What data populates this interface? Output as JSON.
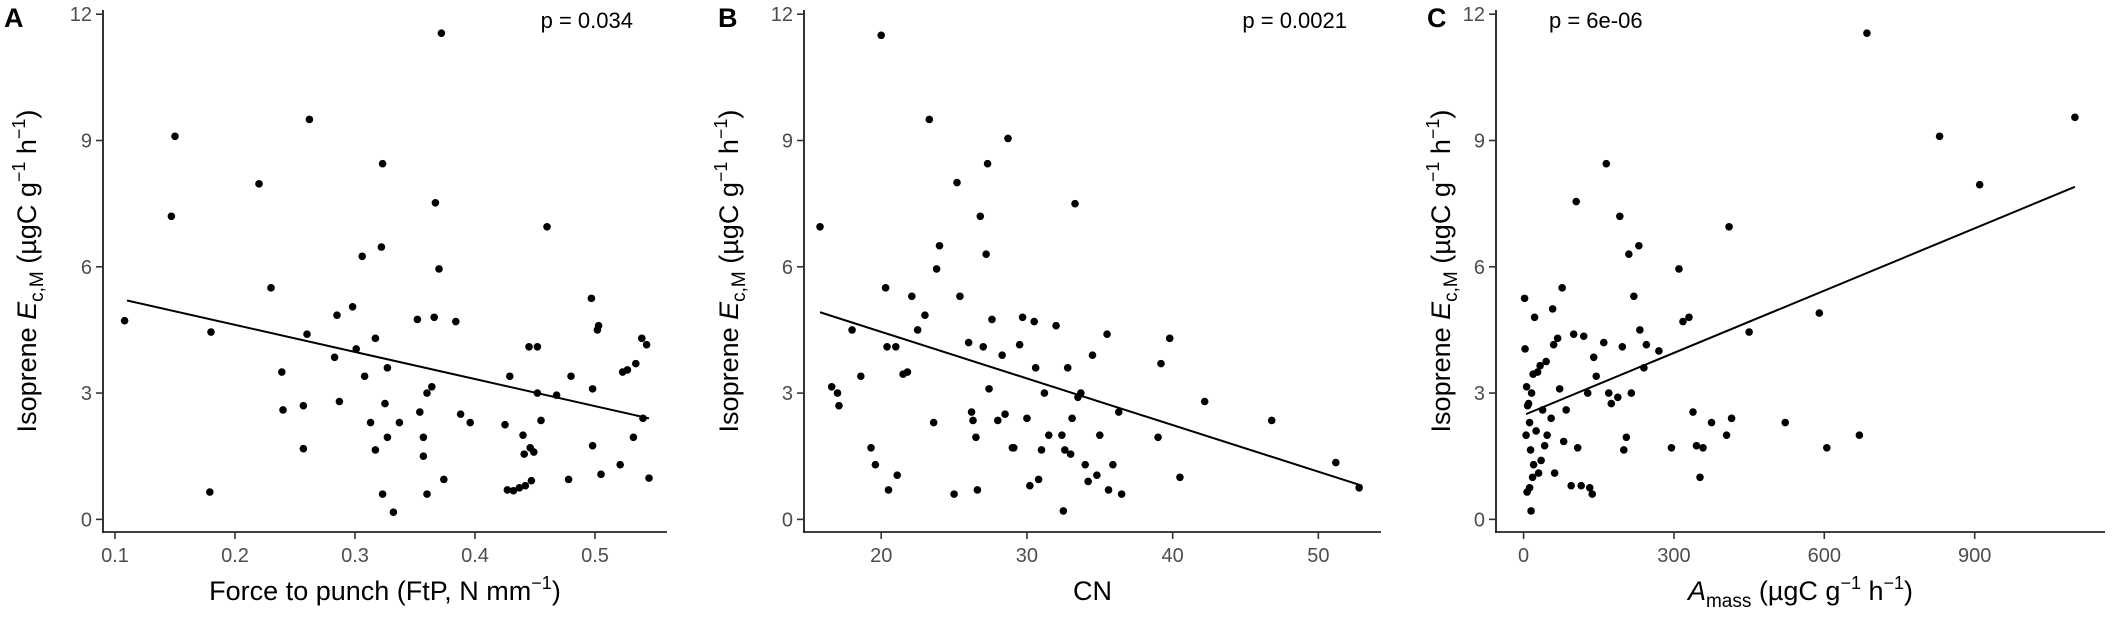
{
  "colors": {
    "points": "#000000",
    "fit_line": "#000000",
    "tick_text": "#4d4d4d"
  },
  "chart_data": [
    {
      "type": "scatter",
      "panel_label": "A",
      "annotation": "p = 0.034",
      "ylabel": "Isoprene E c,M (µgC g⁻¹ h⁻¹)",
      "ylabel_parts": {
        "pre": "Isoprene ",
        "sym": "E",
        "sub": "c,M",
        "post": " (µgC g",
        "exp1": "−1",
        "mid": " h",
        "exp2": "−1",
        "end": ")"
      },
      "xlabel": "Force to punch (FtP, N mm⁻¹)",
      "xlabel_parts": {
        "pre": "Force to punch (FtP, N mm",
        "exp": "−1",
        "end": ")"
      },
      "xlim": [
        0.09,
        0.56
      ],
      "ylim": [
        -0.3,
        12.1
      ],
      "x_ticks": [
        0.1,
        0.2,
        0.3,
        0.4,
        0.5
      ],
      "x_tick_labels": [
        "0.1",
        "0.2",
        "0.3",
        "0.4",
        "0.5"
      ],
      "y_ticks": [
        0,
        3,
        6,
        9,
        12
      ],
      "y_tick_labels": [
        "0",
        "3",
        "6",
        "9",
        "12"
      ],
      "fit_line": {
        "x": [
          0.11,
          0.545
        ],
        "y": [
          5.2,
          2.4
        ]
      },
      "points": [
        [
          0.108,
          4.72
        ],
        [
          0.147,
          7.2
        ],
        [
          0.15,
          9.1
        ],
        [
          0.179,
          0.65
        ],
        [
          0.18,
          4.45
        ],
        [
          0.22,
          7.97
        ],
        [
          0.23,
          5.5
        ],
        [
          0.239,
          3.5
        ],
        [
          0.24,
          2.6
        ],
        [
          0.257,
          2.7
        ],
        [
          0.257,
          1.68
        ],
        [
          0.26,
          4.4
        ],
        [
          0.262,
          9.5
        ],
        [
          0.283,
          3.85
        ],
        [
          0.285,
          4.85
        ],
        [
          0.287,
          2.8
        ],
        [
          0.298,
          5.05
        ],
        [
          0.301,
          4.05
        ],
        [
          0.306,
          6.25
        ],
        [
          0.308,
          3.4
        ],
        [
          0.313,
          2.3
        ],
        [
          0.317,
          4.3
        ],
        [
          0.317,
          1.65
        ],
        [
          0.322,
          6.47
        ],
        [
          0.323,
          8.45
        ],
        [
          0.323,
          0.6
        ],
        [
          0.325,
          2.75
        ],
        [
          0.327,
          1.95
        ],
        [
          0.327,
          3.6
        ],
        [
          0.332,
          0.17
        ],
        [
          0.337,
          2.3
        ],
        [
          0.352,
          4.75
        ],
        [
          0.354,
          2.55
        ],
        [
          0.357,
          1.95
        ],
        [
          0.357,
          1.5
        ],
        [
          0.36,
          0.6
        ],
        [
          0.36,
          3.0
        ],
        [
          0.364,
          3.15
        ],
        [
          0.367,
          7.52
        ],
        [
          0.366,
          4.8
        ],
        [
          0.37,
          5.95
        ],
        [
          0.372,
          11.55
        ],
        [
          0.374,
          0.95
        ],
        [
          0.384,
          4.7
        ],
        [
          0.388,
          2.5
        ],
        [
          0.396,
          2.3
        ],
        [
          0.425,
          2.25
        ],
        [
          0.427,
          0.7
        ],
        [
          0.429,
          3.4
        ],
        [
          0.432,
          0.68
        ],
        [
          0.437,
          0.75
        ],
        [
          0.44,
          2.0
        ],
        [
          0.441,
          1.55
        ],
        [
          0.442,
          0.8
        ],
        [
          0.445,
          4.1
        ],
        [
          0.446,
          1.7
        ],
        [
          0.447,
          0.92
        ],
        [
          0.449,
          1.6
        ],
        [
          0.452,
          4.1
        ],
        [
          0.452,
          3.0
        ],
        [
          0.455,
          2.35
        ],
        [
          0.46,
          6.95
        ],
        [
          0.468,
          2.95
        ],
        [
          0.478,
          0.95
        ],
        [
          0.48,
          3.4
        ],
        [
          0.497,
          5.25
        ],
        [
          0.498,
          3.1
        ],
        [
          0.498,
          1.75
        ],
        [
          0.502,
          4.5
        ],
        [
          0.503,
          4.6
        ],
        [
          0.505,
          1.07
        ],
        [
          0.521,
          1.3
        ],
        [
          0.523,
          3.5
        ],
        [
          0.527,
          3.55
        ],
        [
          0.532,
          1.95
        ],
        [
          0.534,
          3.7
        ],
        [
          0.539,
          4.3
        ],
        [
          0.54,
          2.4
        ],
        [
          0.543,
          4.15
        ],
        [
          0.545,
          0.98
        ]
      ]
    },
    {
      "type": "scatter",
      "panel_label": "B",
      "annotation": "p = 0.0021",
      "ylabel": "Isoprene E c,M (µgC g⁻¹ h⁻¹)",
      "ylabel_parts": {
        "pre": "Isoprene ",
        "sym": "E",
        "sub": "c,M",
        "post": " (µgC g",
        "exp1": "−1",
        "mid": " h",
        "exp2": "−1",
        "end": ")"
      },
      "xlabel": "CN",
      "xlabel_parts": {
        "pre": "CN",
        "exp": "",
        "end": ""
      },
      "xlim": [
        14.7,
        54.3
      ],
      "ylim": [
        -0.3,
        12.1
      ],
      "x_ticks": [
        20,
        30,
        40,
        50
      ],
      "x_tick_labels": [
        "20",
        "30",
        "40",
        "50"
      ],
      "y_ticks": [
        0,
        3,
        6,
        9,
        12
      ],
      "y_tick_labels": [
        "0",
        "3",
        "6",
        "9",
        "12"
      ],
      "fit_line": {
        "x": [
          15.8,
          53.0
        ],
        "y": [
          4.92,
          0.8
        ]
      },
      "points": [
        [
          15.8,
          6.95
        ],
        [
          16.6,
          3.15
        ],
        [
          17.0,
          3.0
        ],
        [
          17.1,
          2.7
        ],
        [
          18.0,
          4.5
        ],
        [
          18.6,
          3.4
        ],
        [
          19.3,
          1.7
        ],
        [
          19.6,
          1.3
        ],
        [
          20.0,
          11.5
        ],
        [
          20.3,
          5.5
        ],
        [
          20.4,
          4.1
        ],
        [
          20.5,
          0.7
        ],
        [
          21.0,
          4.1
        ],
        [
          21.1,
          1.05
        ],
        [
          21.5,
          3.45
        ],
        [
          21.8,
          3.5
        ],
        [
          22.1,
          5.3
        ],
        [
          22.5,
          4.5
        ],
        [
          23.0,
          4.85
        ],
        [
          23.3,
          9.5
        ],
        [
          23.6,
          2.3
        ],
        [
          23.8,
          5.95
        ],
        [
          24.0,
          6.5
        ],
        [
          25.0,
          0.6
        ],
        [
          25.2,
          8.0
        ],
        [
          25.4,
          5.3
        ],
        [
          26.0,
          4.2
        ],
        [
          26.2,
          2.55
        ],
        [
          26.3,
          2.35
        ],
        [
          26.5,
          1.95
        ],
        [
          26.6,
          0.7
        ],
        [
          26.8,
          7.2
        ],
        [
          27.0,
          4.1
        ],
        [
          27.2,
          6.3
        ],
        [
          27.3,
          8.45
        ],
        [
          27.4,
          3.1
        ],
        [
          27.6,
          4.75
        ],
        [
          28.0,
          2.35
        ],
        [
          28.3,
          3.9
        ],
        [
          28.5,
          2.5
        ],
        [
          28.7,
          9.05
        ],
        [
          29.0,
          1.7
        ],
        [
          29.1,
          1.7
        ],
        [
          29.5,
          4.15
        ],
        [
          29.7,
          4.8
        ],
        [
          30.0,
          2.4
        ],
        [
          30.2,
          0.8
        ],
        [
          30.5,
          4.7
        ],
        [
          30.6,
          3.6
        ],
        [
          30.8,
          0.95
        ],
        [
          31.0,
          1.65
        ],
        [
          31.2,
          3.0
        ],
        [
          31.5,
          2.0
        ],
        [
          32.0,
          4.6
        ],
        [
          32.4,
          2.0
        ],
        [
          32.5,
          0.2
        ],
        [
          32.6,
          1.65
        ],
        [
          32.8,
          3.6
        ],
        [
          33.0,
          1.55
        ],
        [
          33.1,
          2.4
        ],
        [
          33.3,
          7.5
        ],
        [
          33.5,
          2.9
        ],
        [
          33.7,
          3.0
        ],
        [
          34.0,
          1.3
        ],
        [
          34.2,
          0.9
        ],
        [
          34.5,
          3.9
        ],
        [
          34.8,
          1.05
        ],
        [
          35.0,
          2.0
        ],
        [
          35.5,
          4.4
        ],
        [
          35.6,
          0.7
        ],
        [
          35.9,
          1.3
        ],
        [
          36.3,
          2.55
        ],
        [
          36.5,
          0.6
        ],
        [
          39.0,
          1.95
        ],
        [
          39.2,
          3.7
        ],
        [
          39.8,
          4.3
        ],
        [
          40.5,
          1.0
        ],
        [
          42.2,
          2.8
        ],
        [
          46.8,
          2.35
        ],
        [
          51.2,
          1.35
        ],
        [
          52.8,
          0.75
        ]
      ]
    },
    {
      "type": "scatter",
      "panel_label": "C",
      "annotation": "p = 6e-06",
      "ylabel": "Isoprene E c,M (µgC g⁻¹ h⁻¹)",
      "ylabel_parts": {
        "pre": "Isoprene ",
        "sym": "E",
        "sub": "c,M",
        "post": " (µgC g",
        "exp1": "−1",
        "mid": " h",
        "exp2": "−1",
        "end": ")"
      },
      "xlabel": "A mass (µgC g⁻¹ h⁻¹)",
      "xlabel_parts": {
        "sym": "A",
        "sub": "mass",
        "post": " (µgC g",
        "exp1": "−1",
        "mid": " h",
        "exp2": "−1",
        "end": ")"
      },
      "xlim": [
        -55,
        1160
      ],
      "ylim": [
        -0.3,
        12.1
      ],
      "x_ticks": [
        0,
        300,
        600,
        900
      ],
      "x_tick_labels": [
        "0",
        "300",
        "600",
        "900"
      ],
      "y_ticks": [
        0,
        3,
        6,
        9,
        12
      ],
      "y_tick_labels": [
        "0",
        "3",
        "6",
        "9",
        "12"
      ],
      "fit_line": {
        "x": [
          5,
          1100
        ],
        "y": [
          2.5,
          7.9
        ]
      },
      "points": [
        [
          2,
          5.25
        ],
        [
          3,
          4.05
        ],
        [
          5,
          2.0
        ],
        [
          6,
          3.15
        ],
        [
          7,
          0.65
        ],
        [
          8,
          2.7
        ],
        [
          10,
          2.75
        ],
        [
          12,
          2.3
        ],
        [
          12,
          0.75
        ],
        [
          14,
          1.65
        ],
        [
          15,
          0.2
        ],
        [
          16,
          3.0
        ],
        [
          18,
          1.0
        ],
        [
          19,
          3.45
        ],
        [
          20,
          1.3
        ],
        [
          22,
          4.8
        ],
        [
          25,
          2.1
        ],
        [
          28,
          3.5
        ],
        [
          30,
          1.1
        ],
        [
          33,
          3.65
        ],
        [
          35,
          1.4
        ],
        [
          38,
          2.6
        ],
        [
          42,
          1.75
        ],
        [
          45,
          3.75
        ],
        [
          47,
          2.0
        ],
        [
          55,
          2.4
        ],
        [
          58,
          5.0
        ],
        [
          60,
          4.15
        ],
        [
          62,
          1.1
        ],
        [
          68,
          4.3
        ],
        [
          72,
          3.1
        ],
        [
          77,
          5.5
        ],
        [
          80,
          1.85
        ],
        [
          85,
          2.6
        ],
        [
          95,
          0.8
        ],
        [
          100,
          4.4
        ],
        [
          105,
          7.55
        ],
        [
          108,
          1.7
        ],
        [
          115,
          0.8
        ],
        [
          120,
          4.35
        ],
        [
          128,
          3.0
        ],
        [
          132,
          0.75
        ],
        [
          137,
          0.6
        ],
        [
          140,
          3.85
        ],
        [
          145,
          3.4
        ],
        [
          160,
          4.2
        ],
        [
          165,
          8.45
        ],
        [
          170,
          3.0
        ],
        [
          175,
          2.75
        ],
        [
          188,
          2.9
        ],
        [
          192,
          7.2
        ],
        [
          197,
          4.1
        ],
        [
          200,
          1.65
        ],
        [
          205,
          1.95
        ],
        [
          210,
          6.3
        ],
        [
          215,
          3.0
        ],
        [
          220,
          5.3
        ],
        [
          230,
          6.5
        ],
        [
          232,
          4.5
        ],
        [
          240,
          3.6
        ],
        [
          245,
          4.15
        ],
        [
          270,
          4.0
        ],
        [
          295,
          1.7
        ],
        [
          310,
          5.95
        ],
        [
          318,
          4.7
        ],
        [
          330,
          4.8
        ],
        [
          338,
          2.55
        ],
        [
          345,
          1.75
        ],
        [
          352,
          1.0
        ],
        [
          358,
          1.7
        ],
        [
          375,
          2.3
        ],
        [
          405,
          2.0
        ],
        [
          410,
          6.95
        ],
        [
          415,
          2.4
        ],
        [
          450,
          4.45
        ],
        [
          522,
          2.3
        ],
        [
          590,
          4.9
        ],
        [
          605,
          1.7
        ],
        [
          670,
          2.0
        ],
        [
          685,
          11.55
        ],
        [
          830,
          9.1
        ],
        [
          910,
          7.95
        ],
        [
          1100,
          9.55
        ]
      ]
    }
  ]
}
